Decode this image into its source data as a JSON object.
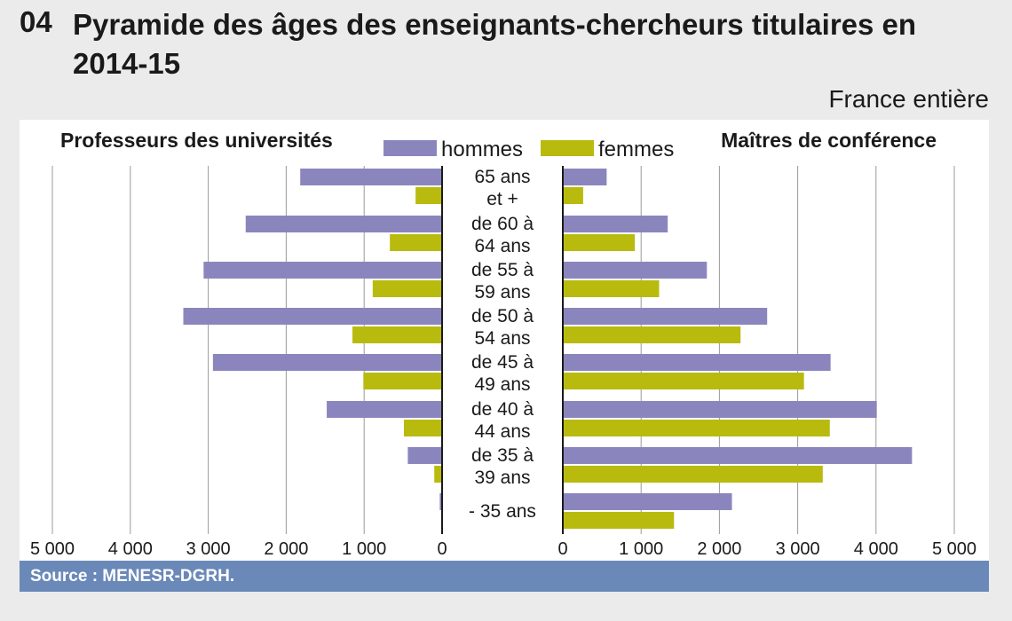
{
  "header": {
    "number": "04",
    "title": "Pyramide des âges des enseignants-chercheurs titulaires en 2014-15",
    "scope": "France entière"
  },
  "footer": {
    "source": "Source : MENESR-DGRH."
  },
  "colors": {
    "hommes": "#8a86bd",
    "femmes": "#b8bb0e",
    "source_band": "#6a89b8"
  },
  "chart_data": {
    "type": "bar",
    "orientation": "horizontal-pyramid",
    "categories": [
      [
        "65 ans",
        "et +"
      ],
      [
        "de 60 à",
        "64 ans"
      ],
      [
        "de 55 à",
        "59 ans"
      ],
      [
        "de 50 à",
        "54 ans"
      ],
      [
        "de 45 à",
        "49 ans"
      ],
      [
        "de 40 à",
        "44 ans"
      ],
      [
        "de 35 à",
        "39 ans"
      ],
      [
        "- 35 ans"
      ]
    ],
    "legend": {
      "hommes": "hommes",
      "femmes": "femmes"
    },
    "panels": [
      {
        "title": "Professeurs des universités",
        "side": "left",
        "xlim": [
          0,
          5000
        ],
        "ticks": [
          0,
          1000,
          2000,
          3000,
          4000,
          5000
        ],
        "tick_labels": [
          "0",
          "1 000",
          "2 000",
          "3 000",
          "4 000",
          "5 000"
        ],
        "series": [
          {
            "name": "hommes",
            "values": [
              1820,
              2520,
              3060,
              3320,
              2940,
              1480,
              440,
              30
            ]
          },
          {
            "name": "femmes",
            "values": [
              340,
              670,
              890,
              1150,
              1010,
              490,
              100,
              10
            ]
          }
        ]
      },
      {
        "title": "Maîtres de conférence",
        "side": "right",
        "xlim": [
          0,
          5000
        ],
        "ticks": [
          0,
          1000,
          2000,
          3000,
          4000,
          5000
        ],
        "tick_labels": [
          "0",
          "1 000",
          "2 000",
          "3 000",
          "4 000",
          "5 000"
        ],
        "series": [
          {
            "name": "hommes",
            "values": [
              560,
              1340,
              1840,
              2610,
              3420,
              4010,
              4460,
              2160
            ]
          },
          {
            "name": "femmes",
            "values": [
              260,
              920,
              1230,
              2270,
              3080,
              3410,
              3320,
              1420
            ]
          }
        ]
      }
    ]
  }
}
